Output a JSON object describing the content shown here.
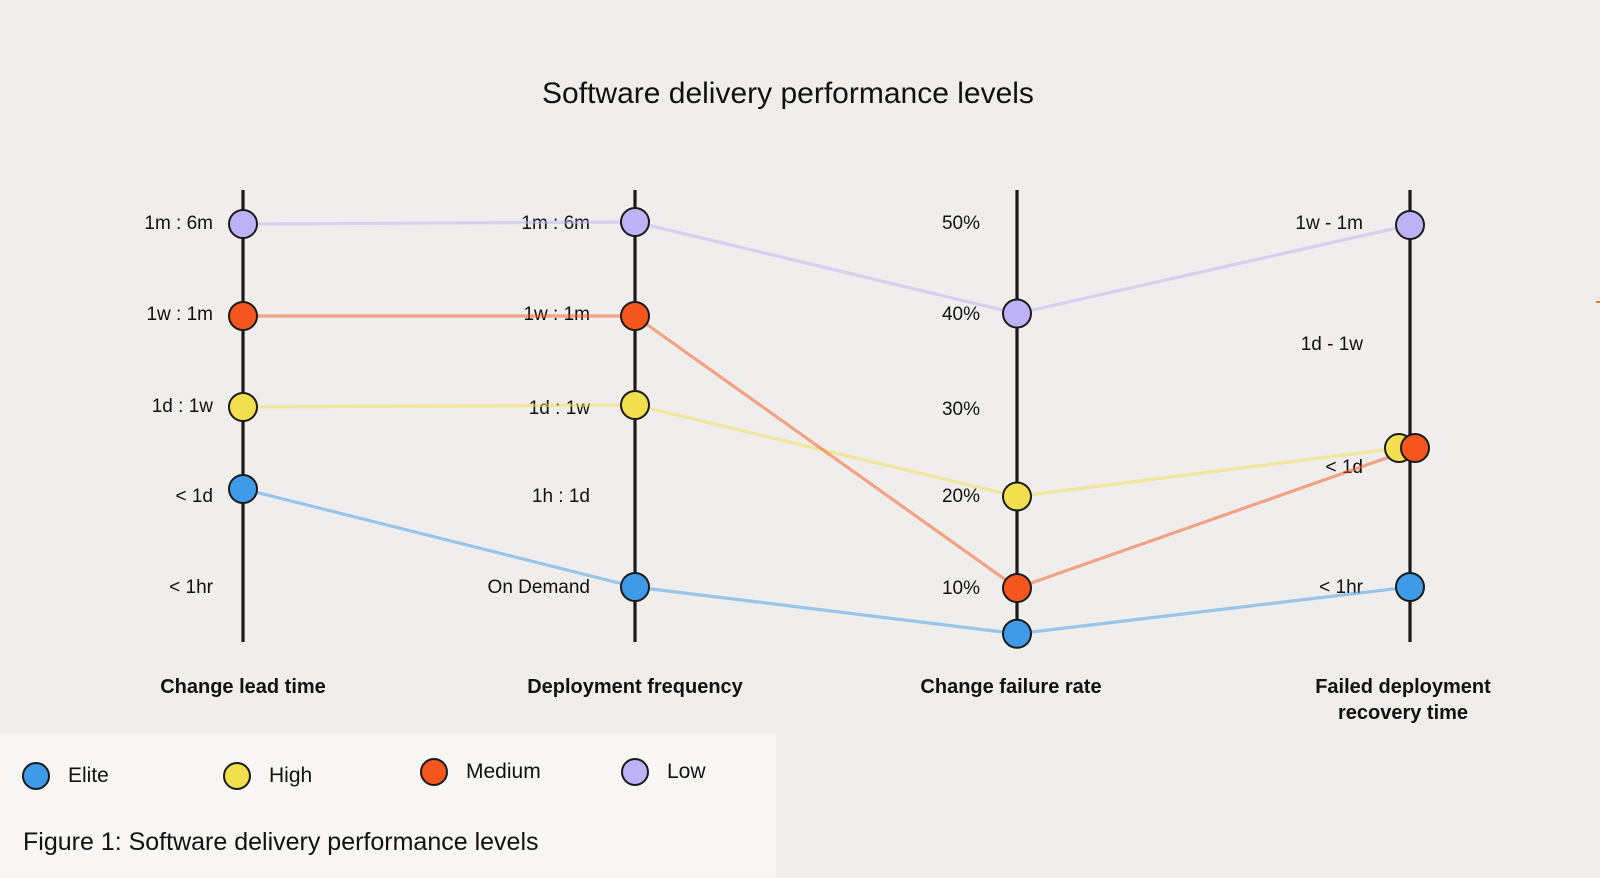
{
  "chart_data": {
    "type": "parallel-coordinates",
    "title": "Software delivery performance levels",
    "axes": [
      {
        "key": "lead_time",
        "label": [
          "Change lead time"
        ],
        "ticks": [
          "< 1hr",
          "< 1d",
          "1d : 1w",
          "1w : 1m",
          "1m : 6m"
        ]
      },
      {
        "key": "deploy_freq",
        "label": [
          "Deployment frequency"
        ],
        "ticks": [
          "On Demand",
          "1h : 1d",
          "1d : 1w",
          "1w : 1m",
          "1m : 6m"
        ]
      },
      {
        "key": "failure_rate",
        "label": [
          "Change failure rate"
        ],
        "ticks": [
          "10%",
          "20%",
          "30%",
          "40%",
          "50%"
        ]
      },
      {
        "key": "recovery_time",
        "label": [
          "Failed deployment",
          "recovery time"
        ],
        "ticks": [
          "< 1hr",
          "< 1d",
          "1d - 1w",
          "1w - 1m"
        ]
      }
    ],
    "series": [
      {
        "name": "Elite",
        "color": "#3f9ae8",
        "values": {
          "lead_time": "< 1d",
          "deploy_freq": "On Demand",
          "failure_rate": 5,
          "recovery_time": "< 1hr"
        }
      },
      {
        "name": "High",
        "color": "#f2df4e",
        "values": {
          "lead_time": "1d : 1w",
          "deploy_freq": "1d : 1w",
          "failure_rate": 20,
          "recovery_time": "< 1d"
        }
      },
      {
        "name": "Medium",
        "color": "#f5561e",
        "values": {
          "lead_time": "1w : 1m",
          "deploy_freq": "1w : 1m",
          "failure_rate": 10,
          "recovery_time": "< 1d"
        }
      },
      {
        "name": "Low",
        "color": "#beb2f6",
        "values": {
          "lead_time": "1m : 6m",
          "deploy_freq": "1m : 6m",
          "failure_rate": 40,
          "recovery_time": "1w - 1m"
        }
      }
    ],
    "legend_position": "bottom-left",
    "grid": false
  },
  "caption": "Figure 1: Software delivery performance levels"
}
